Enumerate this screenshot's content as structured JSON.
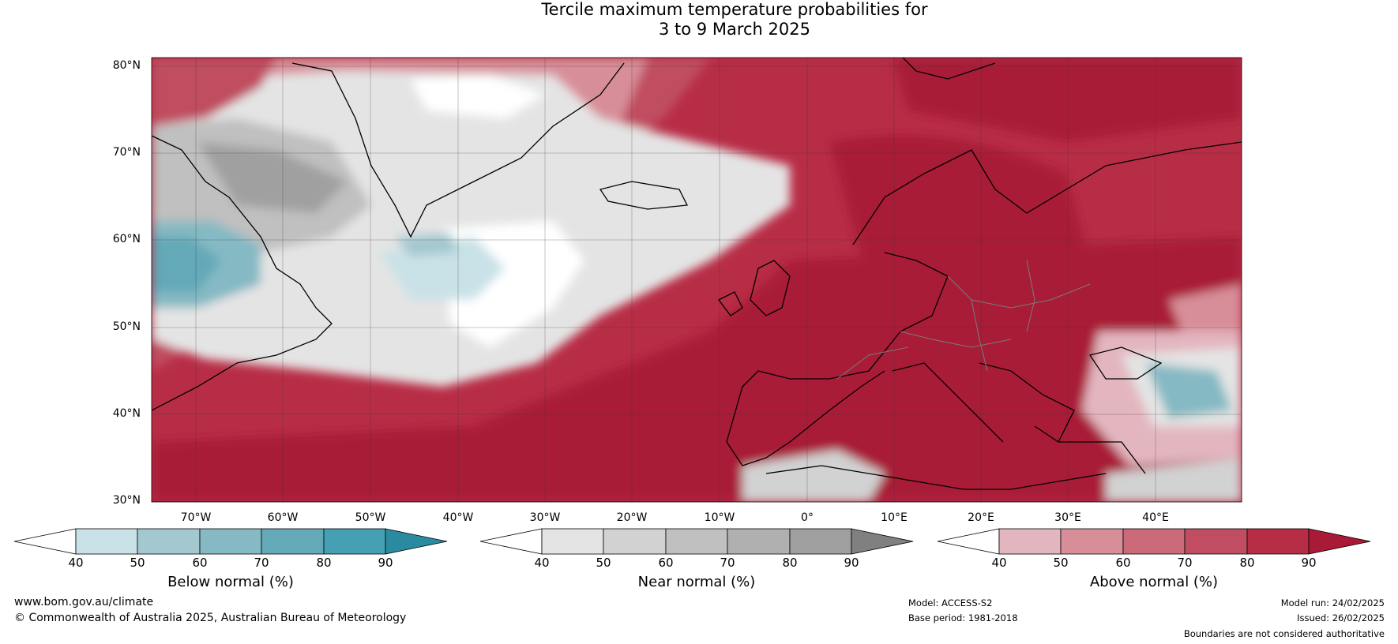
{
  "title": {
    "line1": "Tercile maximum temperature probabilities for",
    "line2": "3 to 9 March 2025"
  },
  "map": {
    "latitude_labels": [
      "80°N",
      "70°N",
      "60°N",
      "50°N",
      "40°N",
      "30°N"
    ],
    "longitude_labels": [
      "70°W",
      "60°W",
      "50°W",
      "40°W",
      "30°W",
      "20°W",
      "10°W",
      "0°",
      "10°E",
      "20°E",
      "30°E",
      "40°E"
    ],
    "colors": {
      "below": [
        "#c9e2e7",
        "#a4c8d0",
        "#85b9c3",
        "#64a9b7",
        "#45a0b3",
        "#2a8ba0"
      ],
      "near": [
        "#ffffff",
        "#e4e4e4",
        "#d2d2d2",
        "#c0c0c0",
        "#b0b0b0",
        "#9f9f9f",
        "#808080"
      ],
      "above": [
        "#e3b6bf",
        "#d88e99",
        "#cb6b7a",
        "#c04d61",
        "#b82d46",
        "#a91a37"
      ]
    }
  },
  "colorbars": [
    {
      "label": "Below normal (%)",
      "ticks": [
        "40",
        "50",
        "60",
        "70",
        "80",
        "90"
      ]
    },
    {
      "label": "Near normal (%)",
      "ticks": [
        "40",
        "50",
        "60",
        "70",
        "80",
        "90"
      ]
    },
    {
      "label": "Above normal (%)",
      "ticks": [
        "40",
        "50",
        "60",
        "70",
        "80",
        "90"
      ]
    }
  ],
  "footer": {
    "website": "www.bom.gov.au/climate",
    "copyright": "© Commonwealth of Australia 2025, Australian Bureau of Meteorology",
    "model": "Model: ACCESS-S2",
    "base_period": "Base period: 1981-2018",
    "model_run": "Model run: 24/02/2025",
    "issued": "Issued: 26/02/2025",
    "disclaimer": "Boundaries are not considered authoritative"
  }
}
